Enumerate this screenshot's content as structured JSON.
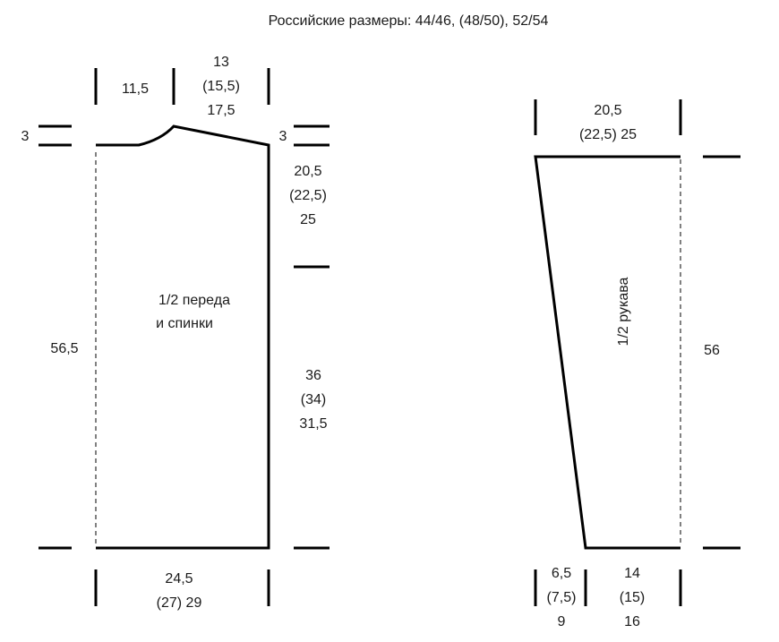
{
  "title": "Российские размеры: 44/46, (48/50), 52/54",
  "body_piece": {
    "name_line1": "1/2 переда",
    "name_line2": "и спинки",
    "shoulder_width": "11,5",
    "neck_width": [
      "13",
      "(15,5)",
      "17,5"
    ],
    "left_drop": "3",
    "right_drop": "3",
    "armhole_depth": [
      "20,5",
      "(22,5)",
      "25"
    ],
    "side_length": [
      "36",
      "(34)",
      "31,5"
    ],
    "total_length": "56,5",
    "bottom_width": [
      "24,5",
      "(27) 29"
    ]
  },
  "sleeve_piece": {
    "name": "1/2 рукава",
    "top_width": [
      "20,5",
      "(22,5) 25"
    ],
    "length": "56",
    "bottom_left": [
      "6,5",
      "(7,5)",
      "9"
    ],
    "bottom_right": [
      "14",
      "(15)",
      "16"
    ]
  },
  "colors": {
    "line": "#000000",
    "text": "#1a1a1a"
  }
}
